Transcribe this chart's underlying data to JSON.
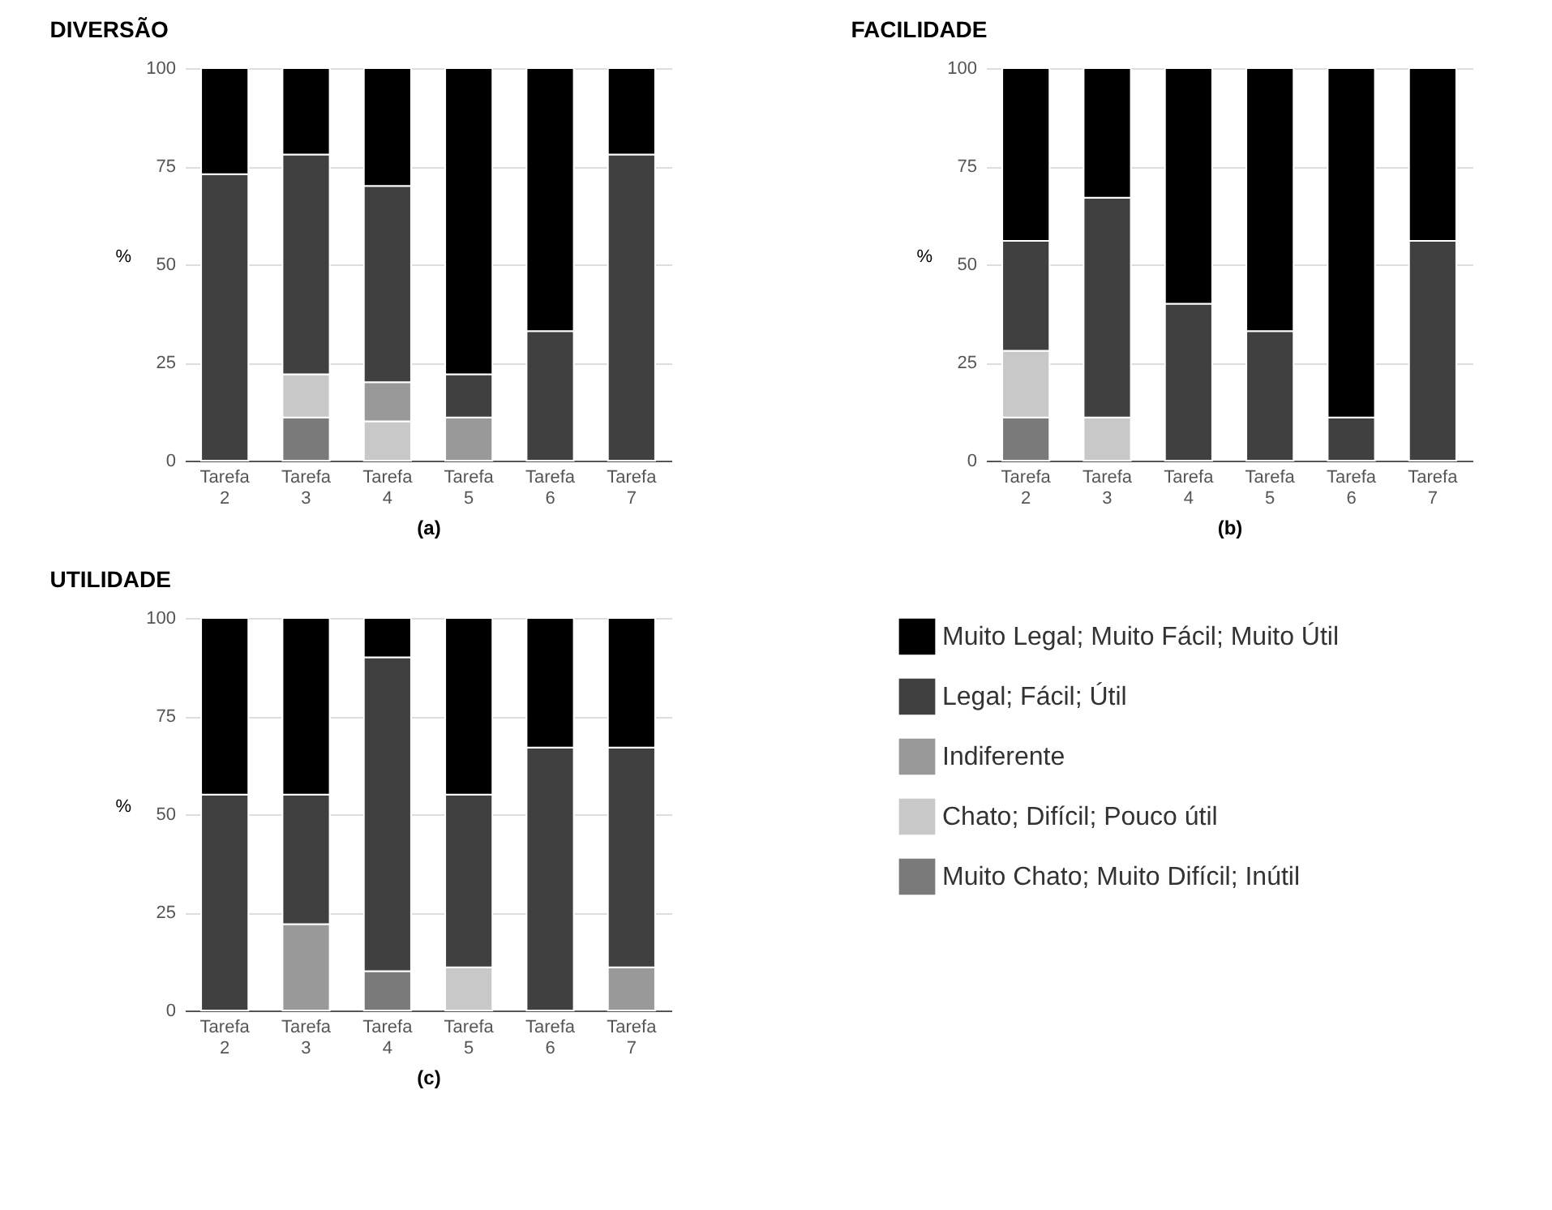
{
  "chart_data": [
    {
      "type": "bar",
      "stacked": true,
      "title": "DIVERSÃO",
      "xlabel": "(a)",
      "ylabel": "%",
      "categories": [
        "Tarefa 2",
        "Tarefa 3",
        "Tarefa 4",
        "Tarefa 5",
        "Tarefa 6",
        "Tarefa 7"
      ],
      "ylim": [
        0,
        100
      ],
      "yticks": [
        0,
        25,
        50,
        75,
        100
      ],
      "grid": "y",
      "legend": false,
      "series": [
        {
          "color": "#7a7a7a",
          "values": [
            null,
            11,
            null,
            null,
            null,
            null
          ]
        },
        {
          "color": "#c8c8c8",
          "values": [
            null,
            11,
            10,
            null,
            null,
            null
          ]
        },
        {
          "color": "#999999",
          "values": [
            null,
            null,
            10,
            11,
            null,
            null
          ]
        },
        {
          "color": "#404040",
          "values": [
            73,
            56,
            50,
            11,
            33,
            78
          ]
        },
        {
          "color": "#000000",
          "values": [
            27,
            22,
            30,
            78,
            67,
            22
          ]
        }
      ]
    },
    {
      "type": "bar",
      "stacked": true,
      "title": "FACILIDADE",
      "xlabel": "(b)",
      "ylabel": "%",
      "categories": [
        "Tarefa 2",
        "Tarefa 3",
        "Tarefa 4",
        "Tarefa 5",
        "Tarefa 6",
        "Tarefa 7"
      ],
      "ylim": [
        0,
        100
      ],
      "yticks": [
        0,
        25,
        50,
        75,
        100
      ],
      "grid": "y",
      "legend": false,
      "series": [
        {
          "color": "#7a7a7a",
          "values": [
            11,
            null,
            null,
            null,
            null,
            null
          ]
        },
        {
          "color": "#c8c8c8",
          "values": [
            17,
            11,
            null,
            null,
            null,
            null
          ]
        },
        {
          "color": "#404040",
          "values": [
            28,
            56,
            40,
            33,
            11,
            56
          ]
        },
        {
          "color": "#000000",
          "values": [
            44,
            33,
            60,
            67,
            89,
            44
          ]
        }
      ]
    },
    {
      "type": "bar",
      "stacked": true,
      "title": "UTILIDADE",
      "xlabel": "(c)",
      "ylabel": "%",
      "categories": [
        "Tarefa 2",
        "Tarefa 3",
        "Tarefa 4",
        "Tarefa 5",
        "Tarefa 6",
        "Tarefa 7"
      ],
      "ylim": [
        0,
        100
      ],
      "yticks": [
        0,
        25,
        50,
        75,
        100
      ],
      "grid": "y",
      "legend": "right",
      "series": [
        {
          "name": "Muito Chato; Muito Difícil; Inútil",
          "color": "#7a7a7a",
          "values": [
            null,
            null,
            10,
            null,
            null,
            null
          ]
        },
        {
          "name": "Chato; Difícil; Pouco útil",
          "color": "#c8c8c8",
          "values": [
            null,
            null,
            null,
            11,
            null,
            null
          ]
        },
        {
          "name": "Indiferente",
          "color": "#999999",
          "values": [
            null,
            22,
            null,
            null,
            null,
            11
          ]
        },
        {
          "name": "Legal; Fácil; Útil",
          "color": "#404040",
          "values": [
            55,
            33,
            80,
            44,
            67,
            56
          ]
        },
        {
          "name": "Muito Legal; Muito Fácil; Muito Útil",
          "color": "#000000",
          "values": [
            45,
            45,
            10,
            45,
            33,
            33
          ]
        }
      ]
    }
  ]
}
